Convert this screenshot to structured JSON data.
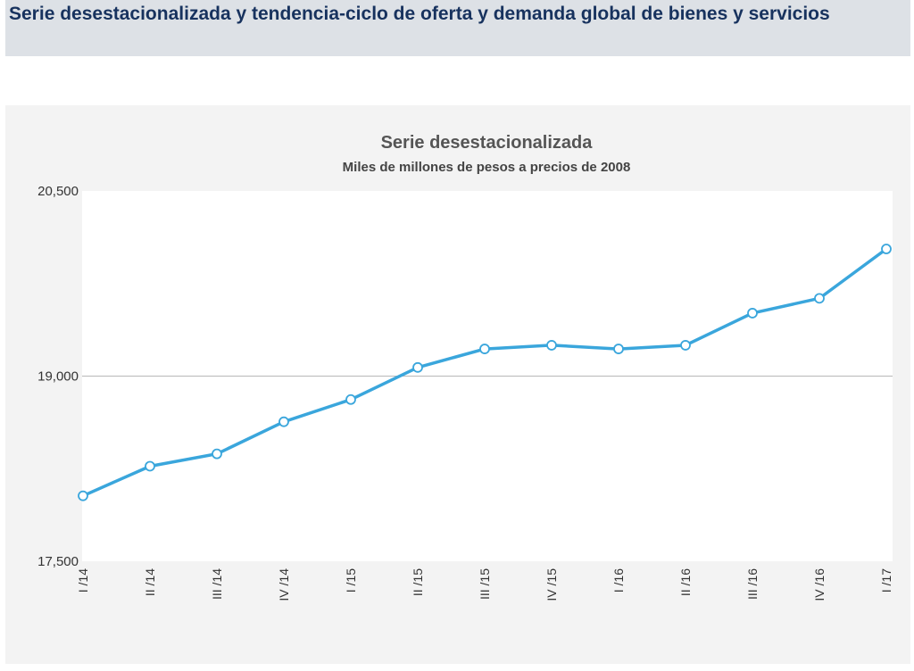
{
  "header": {
    "title": "Serie desestacionalizada y tendencia-ciclo de oferta y demanda global de bienes y servicios"
  },
  "colors": {
    "line": "#3aa6dc",
    "header_text": "#17325e",
    "panel_bg": "#f3f3f3",
    "plot_bg": "#ffffff",
    "gridline": "#b8b8b8"
  },
  "chart_data": {
    "type": "line",
    "title": "Serie desestacionalizada",
    "subtitle": "Miles de millones de pesos a precios de 2008",
    "xlabel": "",
    "ylabel": "",
    "categories": [
      "I /14",
      "II /14",
      "III /14",
      "IV /14",
      "I /15",
      "II /15",
      "III /15",
      "IV /15",
      "I /16",
      "II /16",
      "III /16",
      "IV /16",
      "I /17"
    ],
    "series": [
      {
        "values": [
          18030,
          18270,
          18370,
          18630,
          18810,
          19070,
          19220,
          19250,
          19220,
          19250,
          19510,
          19630,
          20030
        ]
      }
    ],
    "ylim": [
      17500,
      20500
    ],
    "yticks": [
      17500,
      19000,
      20500
    ],
    "yticklabels": [
      "17,500",
      "19,000",
      "20,500"
    ],
    "grid": "horizontal at middle tick",
    "legend": "none"
  }
}
